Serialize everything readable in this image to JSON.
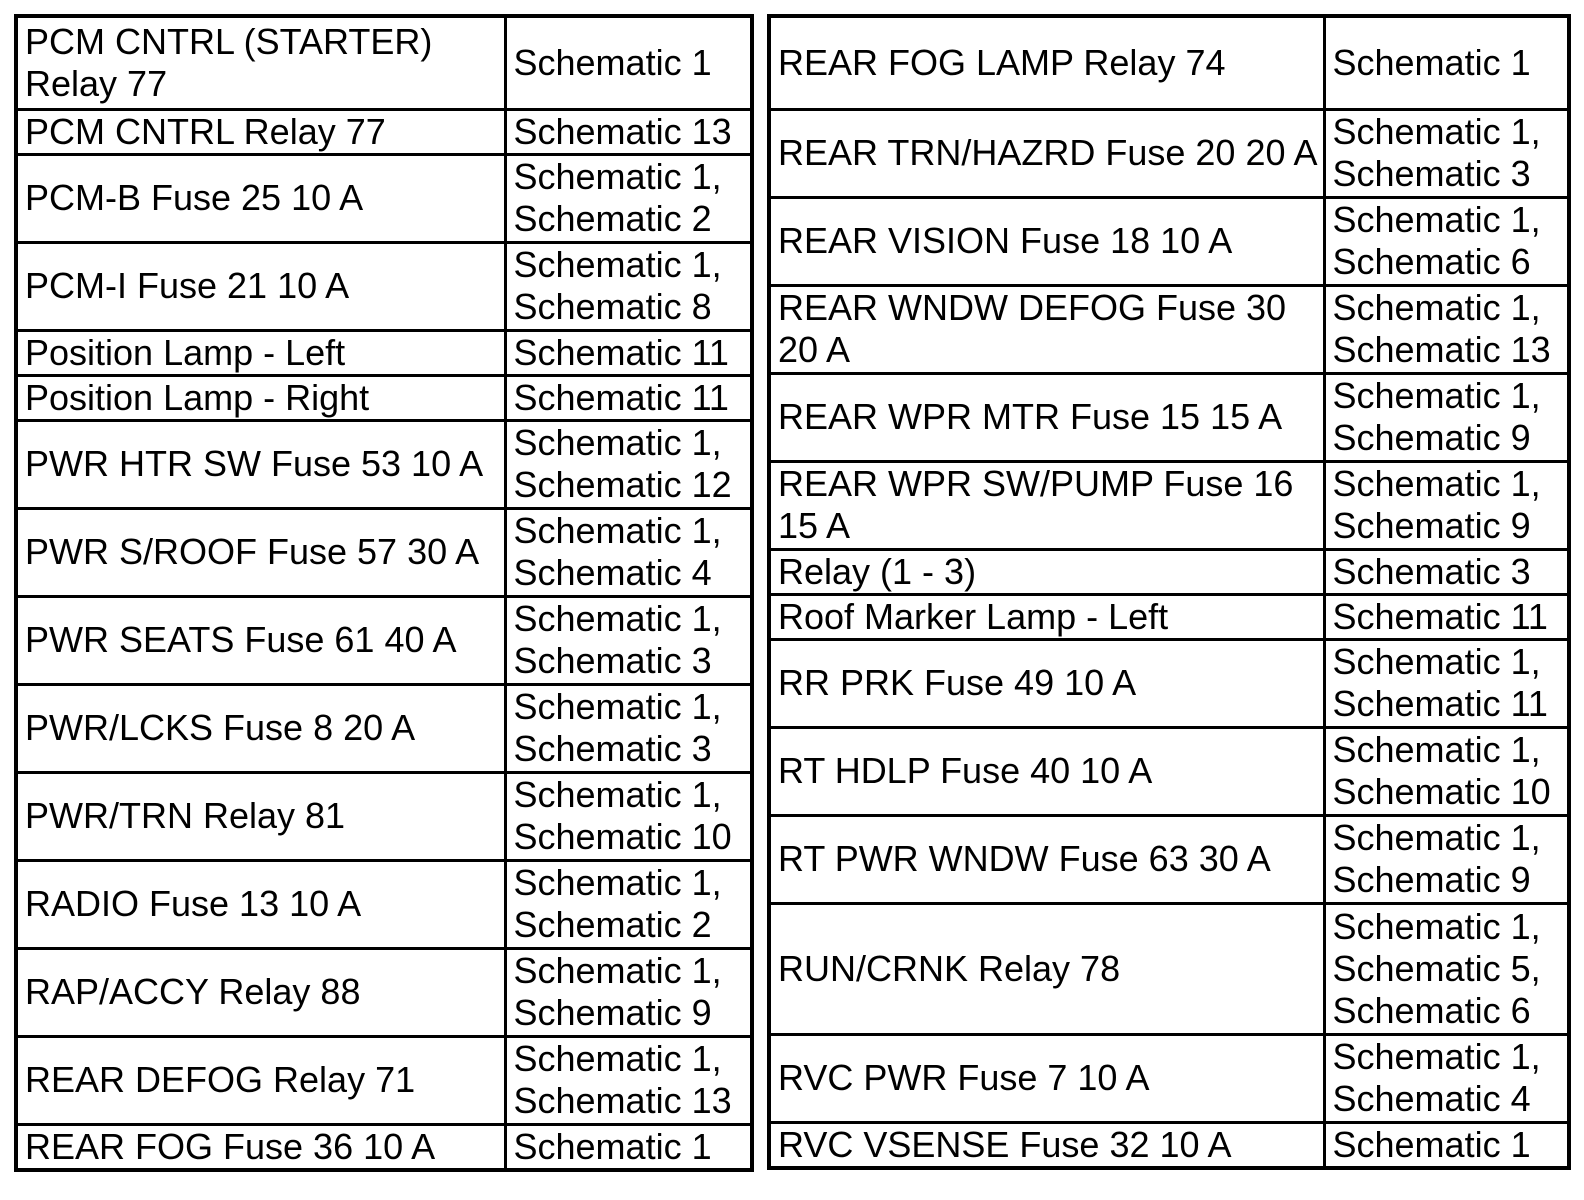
{
  "colors": {
    "background": "#ffffff",
    "text": "#000000",
    "border": "#000000"
  },
  "tables": {
    "left": {
      "rows": [
        {
          "name": "PCM CNTRL (STARTER)\nRelay 77",
          "schematics": "Schematic 1"
        },
        {
          "name": "PCM CNTRL Relay 77",
          "schematics": "Schematic 13"
        },
        {
          "name": "PCM-B Fuse 25 10 A",
          "schematics": "Schematic 1,\nSchematic 2"
        },
        {
          "name": "PCM-I Fuse 21 10 A",
          "schematics": "Schematic 1,\nSchematic 8"
        },
        {
          "name": "Position Lamp - Left",
          "schematics": "Schematic 11"
        },
        {
          "name": "Position Lamp - Right",
          "schematics": "Schematic 11"
        },
        {
          "name": "PWR HTR SW Fuse 53 10 A",
          "schematics": "Schematic 1,\nSchematic 12"
        },
        {
          "name": "PWR S/ROOF Fuse 57 30 A",
          "schematics": "Schematic 1,\nSchematic 4"
        },
        {
          "name": "PWR SEATS Fuse 61 40 A",
          "schematics": "Schematic 1,\nSchematic 3"
        },
        {
          "name": "PWR/LCKS Fuse 8 20 A",
          "schematics": "Schematic 1,\nSchematic 3"
        },
        {
          "name": "PWR/TRN Relay 81",
          "schematics": "Schematic 1,\nSchematic 10"
        },
        {
          "name": "RADIO Fuse 13 10 A",
          "schematics": "Schematic 1,\nSchematic 2"
        },
        {
          "name": "RAP/ACCY Relay 88",
          "schematics": "Schematic 1,\nSchematic 9"
        },
        {
          "name": "REAR DEFOG Relay 71",
          "schematics": "Schematic 1,\nSchematic 13"
        },
        {
          "name": "REAR FOG Fuse 36 10 A",
          "schematics": "Schematic 1"
        }
      ]
    },
    "right": {
      "rows": [
        {
          "name": "REAR FOG LAMP Relay 74",
          "schematics": "Schematic 1"
        },
        {
          "name": "REAR TRN/HAZRD Fuse 20 20 A",
          "schematics": "Schematic 1,\nSchematic 3"
        },
        {
          "name": "REAR VISION Fuse 18 10 A",
          "schematics": "Schematic 1,\nSchematic 6"
        },
        {
          "name": "REAR WNDW DEFOG Fuse 30\n20 A",
          "schematics": "Schematic 1,\nSchematic 13"
        },
        {
          "name": "REAR WPR MTR Fuse 15 15 A",
          "schematics": "Schematic 1,\nSchematic 9"
        },
        {
          "name": "REAR WPR SW/PUMP Fuse 16\n15 A",
          "schematics": "Schematic 1,\nSchematic 9"
        },
        {
          "name": "Relay (1 - 3)",
          "schematics": "Schematic 3"
        },
        {
          "name": "Roof Marker Lamp - Left",
          "schematics": "Schematic 11"
        },
        {
          "name": "RR PRK Fuse 49 10 A",
          "schematics": "Schematic 1,\nSchematic 11"
        },
        {
          "name": "RT HDLP Fuse 40 10 A",
          "schematics": "Schematic 1,\nSchematic 10"
        },
        {
          "name": "RT PWR WNDW Fuse 63 30 A",
          "schematics": "Schematic 1,\nSchematic 9"
        },
        {
          "name": "RUN/CRNK Relay 78",
          "schematics": "Schematic 1,\nSchematic 5,\nSchematic 6"
        },
        {
          "name": "RVC PWR Fuse 7 10 A",
          "schematics": "Schematic 1,\nSchematic 4"
        },
        {
          "name": "RVC VSENSE Fuse 32 10 A",
          "schematics": "Schematic 1"
        }
      ]
    }
  }
}
